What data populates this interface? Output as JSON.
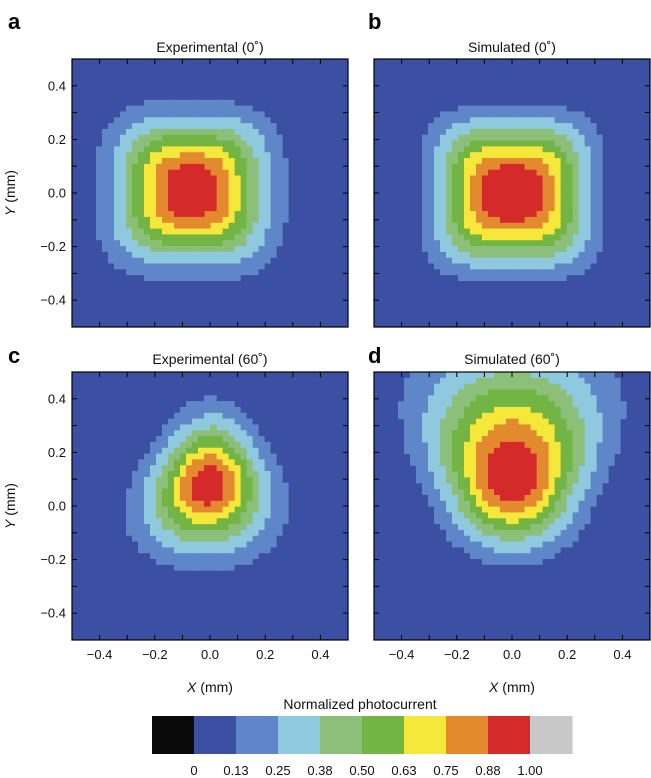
{
  "chart_data": [
    {
      "type": "heatmap",
      "panel_label": "a",
      "title": "Experimental (0˚)",
      "xlabel_symbol": "X",
      "xlabel_unit": " (mm)",
      "ylabel_symbol": "Y",
      "ylabel_unit": " (mm)",
      "xlim": [
        -0.5,
        0.5
      ],
      "ylim": [
        -0.5,
        0.5
      ],
      "contour_levels": [
        0,
        0.13,
        0.25,
        0.38,
        0.5,
        0.63,
        0.75,
        0.88,
        1.0
      ],
      "peak": {
        "x": -0.07,
        "y": 0.01
      },
      "peak_value": 1.0
    },
    {
      "type": "heatmap",
      "panel_label": "b",
      "title": "Simulated (0˚)",
      "xlabel_symbol": "X",
      "xlabel_unit": " (mm)",
      "ylabel_symbol": "Y",
      "ylabel_unit": " (mm)",
      "xlim": [
        -0.5,
        0.5
      ],
      "ylim": [
        -0.5,
        0.5
      ],
      "contour_levels": [
        0,
        0.13,
        0.25,
        0.38,
        0.5,
        0.63,
        0.75,
        0.88,
        1.0
      ],
      "peak": {
        "x": 0.0,
        "y": 0.0
      },
      "peak_value": 1.0
    },
    {
      "type": "heatmap",
      "panel_label": "c",
      "title": "Experimental (60˚)",
      "xlabel_symbol": "X",
      "xlabel_unit": " (mm)",
      "ylabel_symbol": "Y",
      "ylabel_unit": " (mm)",
      "xlim": [
        -0.5,
        0.5
      ],
      "ylim": [
        -0.5,
        0.5
      ],
      "contour_levels": [
        0,
        0.13,
        0.25,
        0.38,
        0.5,
        0.63,
        0.75,
        0.88,
        1.0
      ],
      "peak": {
        "x": -0.01,
        "y": 0.09
      },
      "peak_value": 1.0
    },
    {
      "type": "heatmap",
      "panel_label": "d",
      "title": "Simulated (60˚)",
      "xlabel_symbol": "X",
      "xlabel_unit": " (mm)",
      "ylabel_symbol": "Y",
      "ylabel_unit": " (mm)",
      "xlim": [
        -0.5,
        0.5
      ],
      "ylim": [
        -0.5,
        0.5
      ],
      "contour_levels": [
        0,
        0.13,
        0.25,
        0.38,
        0.5,
        0.63,
        0.75,
        0.88,
        1.0
      ],
      "peak": {
        "x": -0.01,
        "y": 0.1
      },
      "peak_value": 1.0
    }
  ],
  "ticks": {
    "x": [
      "−0.4",
      "−0.2",
      "0.0",
      "0.2",
      "0.4"
    ],
    "x_values": [
      -0.4,
      -0.2,
      0.0,
      0.2,
      0.4
    ],
    "y": [
      "−0.4",
      "−0.2",
      "0.0",
      "0.2",
      "0.4"
    ],
    "y_values": [
      -0.4,
      -0.2,
      0.0,
      0.2,
      0.4
    ]
  },
  "colorbar": {
    "title": "Normalized photocurrent",
    "colors": [
      "#0a0a0a",
      "#3b4fa3",
      "#5e86c9",
      "#8ec9df",
      "#8cc07a",
      "#72b545",
      "#f5e83a",
      "#e48a2e",
      "#d42a2a",
      "#c8c8c8"
    ],
    "tick_labels": [
      "0",
      "0.13",
      "0.25",
      "0.38",
      "0.50",
      "0.63",
      "0.75",
      "0.88",
      "1.00"
    ],
    "tick_values": [
      0,
      0.13,
      0.25,
      0.38,
      0.5,
      0.63,
      0.75,
      0.88,
      1.0
    ]
  }
}
